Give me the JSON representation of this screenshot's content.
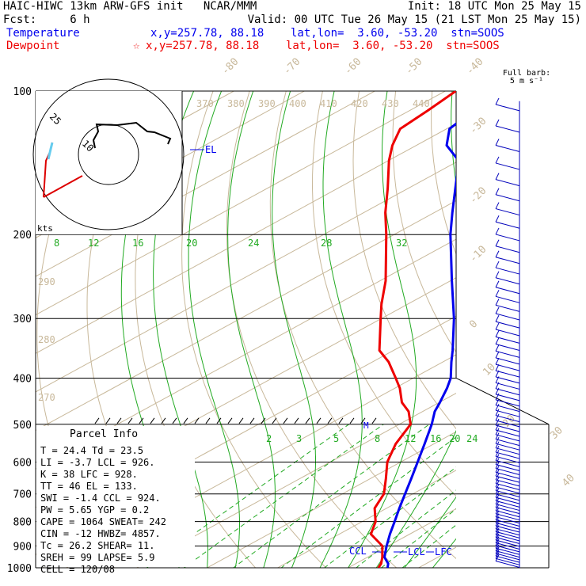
{
  "header": {
    "line1_left": "HAIC-HIWC 13km ARW-GFS init   NCAR/MMM",
    "line1_right": "Init: 18 UTC Mon 25 May 15",
    "line2_left": "Fcst:     6 h",
    "line2_right": "Valid: 00 UTC Tue 26 May 15 (21 LST Mon 25 May 15)",
    "temp_label": "Temperature",
    "temp_info": "x,y=257.78, 88.18    lat,lon=  3.60, -53.20  stn=SOOS",
    "dew_label": "Dewpoint",
    "dew_star": "☆",
    "dew_info": "x,y=257.78, 88.18    lat,lon=  3.60, -53.20  stn=SOOS",
    "temp_color": "#0000ee",
    "dew_color": "#ee0000"
  },
  "barb_caption": [
    "Full barb:",
    "5 m s⁻¹"
  ],
  "hodograph": {
    "label_kts": "kts",
    "ring_labels": [
      "25",
      "10"
    ]
  },
  "parcel_info": {
    "title": "Parcel Info",
    "rows": [
      "T  =    24.4  Td =  23.5",
      "LI =    -3.7  LCL =  926.",
      "K  =      38  LFC =  928.",
      "TT =      46  EL  =  133.",
      "SWI =   -1.4  CCL =  924.",
      "PW =    5.65  YGP =   0.2",
      "CAPE =  1064  SWEAT=  242",
      "CIN =    -12  HWBZ= 4857.",
      "Tc =    26.2  SHEAR=  11.",
      "SREH =    99  LAPSE=  5.9",
      "CELL = 120/08"
    ]
  },
  "levels": {
    "EL": "EL",
    "CCL": "CCL",
    "LCL": "LCL",
    "LFC": "LFC",
    "M": "M"
  },
  "chart_data": {
    "type": "line",
    "title": "",
    "pressure_levels": [
      100,
      200,
      300,
      400,
      500,
      600,
      700,
      800,
      900,
      1000
    ],
    "isotherm_labels": [
      "-80",
      "-70",
      "-60",
      "-50",
      "-40",
      "-30",
      "-20",
      "-10",
      "0",
      "10",
      "20",
      "30",
      "40"
    ],
    "dry_adiabat_labels_top": [
      "370",
      "380",
      "390",
      "400",
      "410",
      "420",
      "430",
      "440"
    ],
    "dry_adiabat_labels_left": [
      "290",
      "280",
      "270"
    ],
    "moist_adiabat_labels": [
      "8",
      "12",
      "16",
      "20",
      "24",
      "28",
      "32"
    ],
    "mixing_ratio_labels": [
      "2",
      "3",
      "5",
      "8",
      "12",
      "16",
      "20",
      "24"
    ],
    "series": [
      {
        "name": "Temperature",
        "color": "#0000ee",
        "points": [
          [
            1000,
            25.6
          ],
          [
            980,
            24.6
          ],
          [
            950,
            22.4
          ],
          [
            900,
            19.8
          ],
          [
            850,
            17.2
          ],
          [
            800,
            14.6
          ],
          [
            750,
            11.8
          ],
          [
            700,
            8.9
          ],
          [
            650,
            5.8
          ],
          [
            600,
            2.4
          ],
          [
            550,
            -1.3
          ],
          [
            500,
            -5.4
          ],
          [
            470,
            -8.3
          ],
          [
            450,
            -9.9
          ],
          [
            420,
            -12.6
          ],
          [
            400,
            -14.7
          ],
          [
            370,
            -18.8
          ],
          [
            350,
            -21.6
          ],
          [
            300,
            -29.7
          ],
          [
            250,
            -39.8
          ],
          [
            200,
            -52.0
          ],
          [
            180,
            -57.4
          ],
          [
            160,
            -63.3
          ],
          [
            140,
            -70.0
          ],
          [
            130,
            -75.7
          ],
          [
            120,
            -79.6
          ],
          [
            110,
            -80.9
          ],
          [
            100,
            -81.6
          ]
        ]
      },
      {
        "name": "Dewpoint",
        "color": "#ee0000",
        "points": [
          [
            1000,
            24.3
          ],
          [
            980,
            23.6
          ],
          [
            950,
            22.1
          ],
          [
            900,
            19.2
          ],
          [
            850,
            14.5
          ],
          [
            800,
            11.9
          ],
          [
            750,
            8.3
          ],
          [
            700,
            5.9
          ],
          [
            650,
            2.2
          ],
          [
            600,
            -1.9
          ],
          [
            550,
            -5.4
          ],
          [
            500,
            -8.4
          ],
          [
            470,
            -12.0
          ],
          [
            450,
            -15.3
          ],
          [
            420,
            -19.3
          ],
          [
            400,
            -22.5
          ],
          [
            370,
            -27.7
          ],
          [
            350,
            -32.0
          ],
          [
            300,
            -40.1
          ],
          [
            280,
            -43.7
          ],
          [
            250,
            -49.2
          ],
          [
            200,
            -61.1
          ],
          [
            180,
            -66.9
          ],
          [
            160,
            -72.9
          ],
          [
            140,
            -79.9
          ],
          [
            130,
            -83.4
          ],
          [
            120,
            -86.6
          ],
          [
            110,
            -87.4
          ],
          [
            100,
            -88.5
          ]
        ]
      }
    ]
  }
}
